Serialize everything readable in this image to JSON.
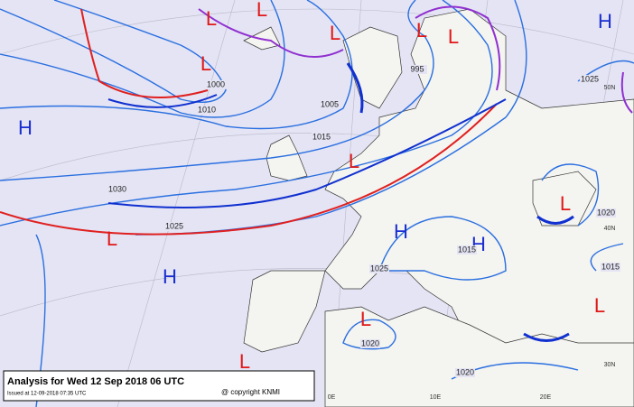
{
  "header": {
    "title": "Analysis for Wed 12 Sep 2018  06 UTC",
    "issued": "Issued at 12-09-2018  07:35 UTC",
    "copyright": "@ copyright KNMI"
  },
  "centers": [
    "H",
    "L",
    "L",
    "L",
    "L",
    "L",
    "L",
    "H",
    "L",
    "H",
    "H",
    "H",
    "L",
    "L",
    "L",
    "L",
    "L"
  ],
  "isobar_labels": [
    "1000",
    "1010",
    "1005",
    "995",
    "1015",
    "1030",
    "1025",
    "1025",
    "1020",
    "1015",
    "1025",
    "1015",
    "1020",
    "1020"
  ],
  "grid_labels": [
    "50N",
    "40N",
    "30N",
    "0E",
    "10E",
    "20E"
  ]
}
